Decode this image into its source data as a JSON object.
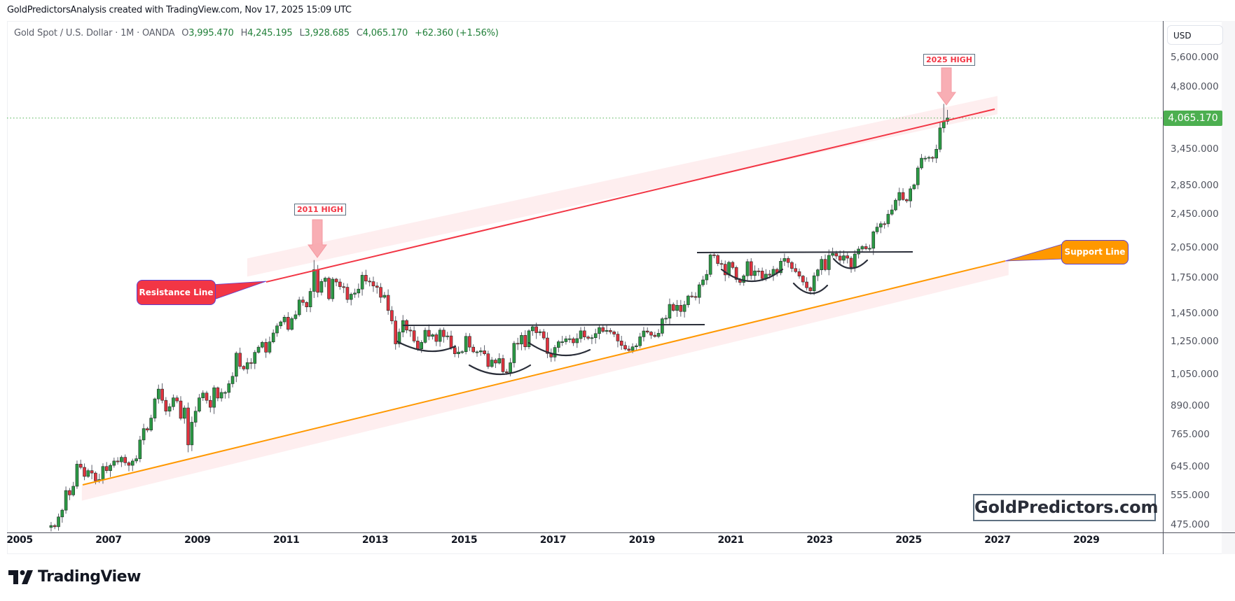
{
  "credit": "GoldPredictorsAnalysis created with TradingView.com, Nov 17, 2025 15:09 UTC",
  "legend": {
    "symbol": "Gold Spot / U.S. Dollar · 1M · OANDA",
    "open_label": "O",
    "open": "3,995.470",
    "high_label": "H",
    "high": "4,245.195",
    "low_label": "L",
    "low": "3,928.685",
    "close_label": "C",
    "close": "4,065.170",
    "change": "+62.360 (+1.56%)"
  },
  "axis": {
    "currency": "USD",
    "current_price": "4,065.170",
    "y_ticks": [
      {
        "label": "5,600.000",
        "value": 5600
      },
      {
        "label": "4,800.000",
        "value": 4800
      },
      {
        "label": "3,450.000",
        "value": 3450
      },
      {
        "label": "2,850.000",
        "value": 2850
      },
      {
        "label": "2,450.000",
        "value": 2450
      },
      {
        "label": "2,050.000",
        "value": 2050
      },
      {
        "label": "1,750.000",
        "value": 1750
      },
      {
        "label": "1,450.000",
        "value": 1450
      },
      {
        "label": "1,250.000",
        "value": 1250
      },
      {
        "label": "1,050.000",
        "value": 1050
      },
      {
        "label": "890.000",
        "value": 890
      },
      {
        "label": "765.000",
        "value": 765
      },
      {
        "label": "645.000",
        "value": 645
      },
      {
        "label": "555.000",
        "value": 555
      },
      {
        "label": "475.000",
        "value": 475
      }
    ],
    "x_ticks": [
      "2005",
      "2007",
      "2009",
      "2011",
      "2013",
      "2015",
      "2017",
      "2019",
      "2021",
      "2023",
      "2025",
      "2027",
      "2029"
    ]
  },
  "annotations": {
    "high_2011": "2011 HIGH",
    "high_2025": "2025 HIGH",
    "resistance": "Resistance Line",
    "support": "Support Line",
    "watermark": "GoldPredictors.com"
  },
  "colors": {
    "up": "#2b9a45",
    "down": "#e2323f",
    "outline": "#1e2a22",
    "wick": "#5d606b",
    "resistance": "#f23645",
    "support": "#ff9800",
    "band": "#fde8ea",
    "arrow": "#f7a1a8",
    "price_line": "#4caf50"
  },
  "footer": {
    "brand": "TradingView"
  },
  "chart_data": {
    "type": "candlestick",
    "title": "Gold Spot / U.S. Dollar · 1M · OANDA",
    "xlabel": "",
    "ylabel": "USD",
    "y_scale": "log",
    "ylim": [
      475,
      5600
    ],
    "xlim": [
      2005,
      2030
    ],
    "grid": false,
    "start": "2005-09",
    "monthly_close": [
      473,
      470,
      495,
      513,
      569,
      556,
      582,
      654,
      643,
      613,
      632,
      624,
      599,
      603,
      646,
      632,
      650,
      665,
      662,
      678,
      659,
      650,
      665,
      673,
      743,
      789,
      783,
      834,
      923,
      972,
      916,
      865,
      886,
      928,
      913,
      833,
      880,
      724,
      816,
      865,
      928,
      952,
      916,
      883,
      979,
      927,
      955,
      955,
      1000,
      1040,
      1175,
      1096,
      1081,
      1118,
      1113,
      1180,
      1213,
      1244,
      1181,
      1247,
      1307,
      1357,
      1386,
      1421,
      1332,
      1410,
      1439,
      1556,
      1536,
      1500,
      1628,
      1826,
      1620,
      1716,
      1746,
      1566,
      1737,
      1711,
      1669,
      1664,
      1560,
      1604,
      1614,
      1648,
      1773,
      1719,
      1714,
      1675,
      1663,
      1578,
      1595,
      1472,
      1393,
      1234,
      1313,
      1396,
      1327,
      1323,
      1253,
      1202,
      1244,
      1326,
      1284,
      1295,
      1250,
      1327,
      1282,
      1287,
      1210,
      1171,
      1182,
      1184,
      1284,
      1213,
      1183,
      1183,
      1190,
      1171,
      1095,
      1133,
      1115,
      1142,
      1065,
      1061,
      1117,
      1238,
      1233,
      1291,
      1215,
      1322,
      1351,
      1309,
      1316,
      1273,
      1173,
      1151,
      1211,
      1248,
      1248,
      1268,
      1268,
      1241,
      1269,
      1322,
      1280,
      1271,
      1275,
      1303,
      1345,
      1318,
      1325,
      1315,
      1299,
      1253,
      1224,
      1201,
      1192,
      1215,
      1222,
      1281,
      1321,
      1313,
      1292,
      1283,
      1305,
      1409,
      1413,
      1520,
      1472,
      1513,
      1464,
      1517,
      1589,
      1585,
      1577,
      1686,
      1730,
      1781,
      1975,
      1968,
      1886,
      1879,
      1776,
      1898,
      1847,
      1734,
      1707,
      1768,
      1905,
      1770,
      1814,
      1813,
      1742,
      1783,
      1774,
      1829,
      1796,
      1909,
      1937,
      1896,
      1837,
      1807,
      1765,
      1711,
      1660,
      1633,
      1768,
      1824,
      1928,
      1826,
      1969,
      1990,
      1962,
      1919,
      1965,
      1940,
      1849,
      1983,
      2036,
      2063,
      2039,
      2044,
      2230,
      2286,
      2327,
      2326,
      2447,
      2503,
      2635,
      2744,
      2643,
      2625,
      2798,
      2858,
      3124,
      3289,
      3289,
      3303,
      3290,
      3448,
      3859,
      4003,
      4065
    ],
    "last_candle": {
      "open": 3995.47,
      "high": 4245.195,
      "low": 3928.685,
      "close": 4065.17
    },
    "highs": {
      "2011": 1921,
      "2025": 4381
    },
    "lines": {
      "resistance": {
        "from": [
          2010.5,
          1800
        ],
        "to": [
          2027.0,
          4150
        ],
        "color": "#f23645"
      },
      "support": {
        "from": [
          2006.4,
          585
        ],
        "to": [
          2027.0,
          1910
        ],
        "color": "#ff9800"
      },
      "necklines": [
        {
          "from": [
            2013.5,
            1350
          ],
          "to": [
            2020.3,
            1350
          ]
        },
        {
          "from": [
            2020.5,
            2000
          ],
          "to": [
            2025.0,
            2000
          ]
        }
      ]
    }
  }
}
